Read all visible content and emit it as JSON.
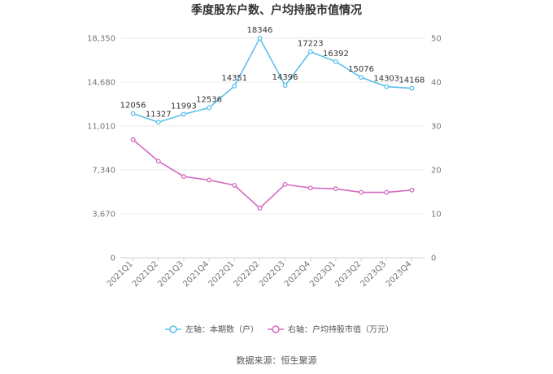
{
  "chart_data": {
    "type": "line",
    "title": "季度股东户数、户均持股市值情况",
    "categories": [
      "2021Q1",
      "2021Q2",
      "2021Q3",
      "2021Q4",
      "2022Q1",
      "2022Q2",
      "2022Q3",
      "2022Q4",
      "2023Q1",
      "2023Q2",
      "2023Q3",
      "2023Q4"
    ],
    "left_axis": {
      "ticks": [
        "0",
        "3,670",
        "7,340",
        "11,010",
        "14,680",
        "18,350"
      ],
      "ylim": [
        0,
        18350
      ]
    },
    "right_axis": {
      "ticks": [
        "0",
        "10",
        "20",
        "30",
        "40",
        "50"
      ],
      "ylim": [
        0,
        50
      ]
    },
    "series": [
      {
        "name": "左轴：本期数（户）",
        "axis": "left",
        "color": "#5bc0eb",
        "values": [
          12056,
          11327,
          11993,
          12536,
          14351,
          18346,
          14396,
          17223,
          16392,
          15076,
          14303,
          14168
        ],
        "labels": [
          "12056",
          "11327",
          "11993",
          "12536",
          "14351",
          "18346",
          "14396",
          "17223",
          "16392",
          "15076",
          "14303",
          "14168"
        ]
      },
      {
        "name": "右轴：户均持股市值（万元）",
        "axis": "right",
        "color": "#d46bbf",
        "values": [
          26.9,
          22.0,
          18.5,
          17.7,
          16.5,
          11.3,
          16.7,
          15.9,
          15.7,
          14.9,
          14.9,
          15.4
        ]
      }
    ],
    "grid": true,
    "legend": "bottom"
  },
  "source_text": "数据来源：恒生聚源"
}
